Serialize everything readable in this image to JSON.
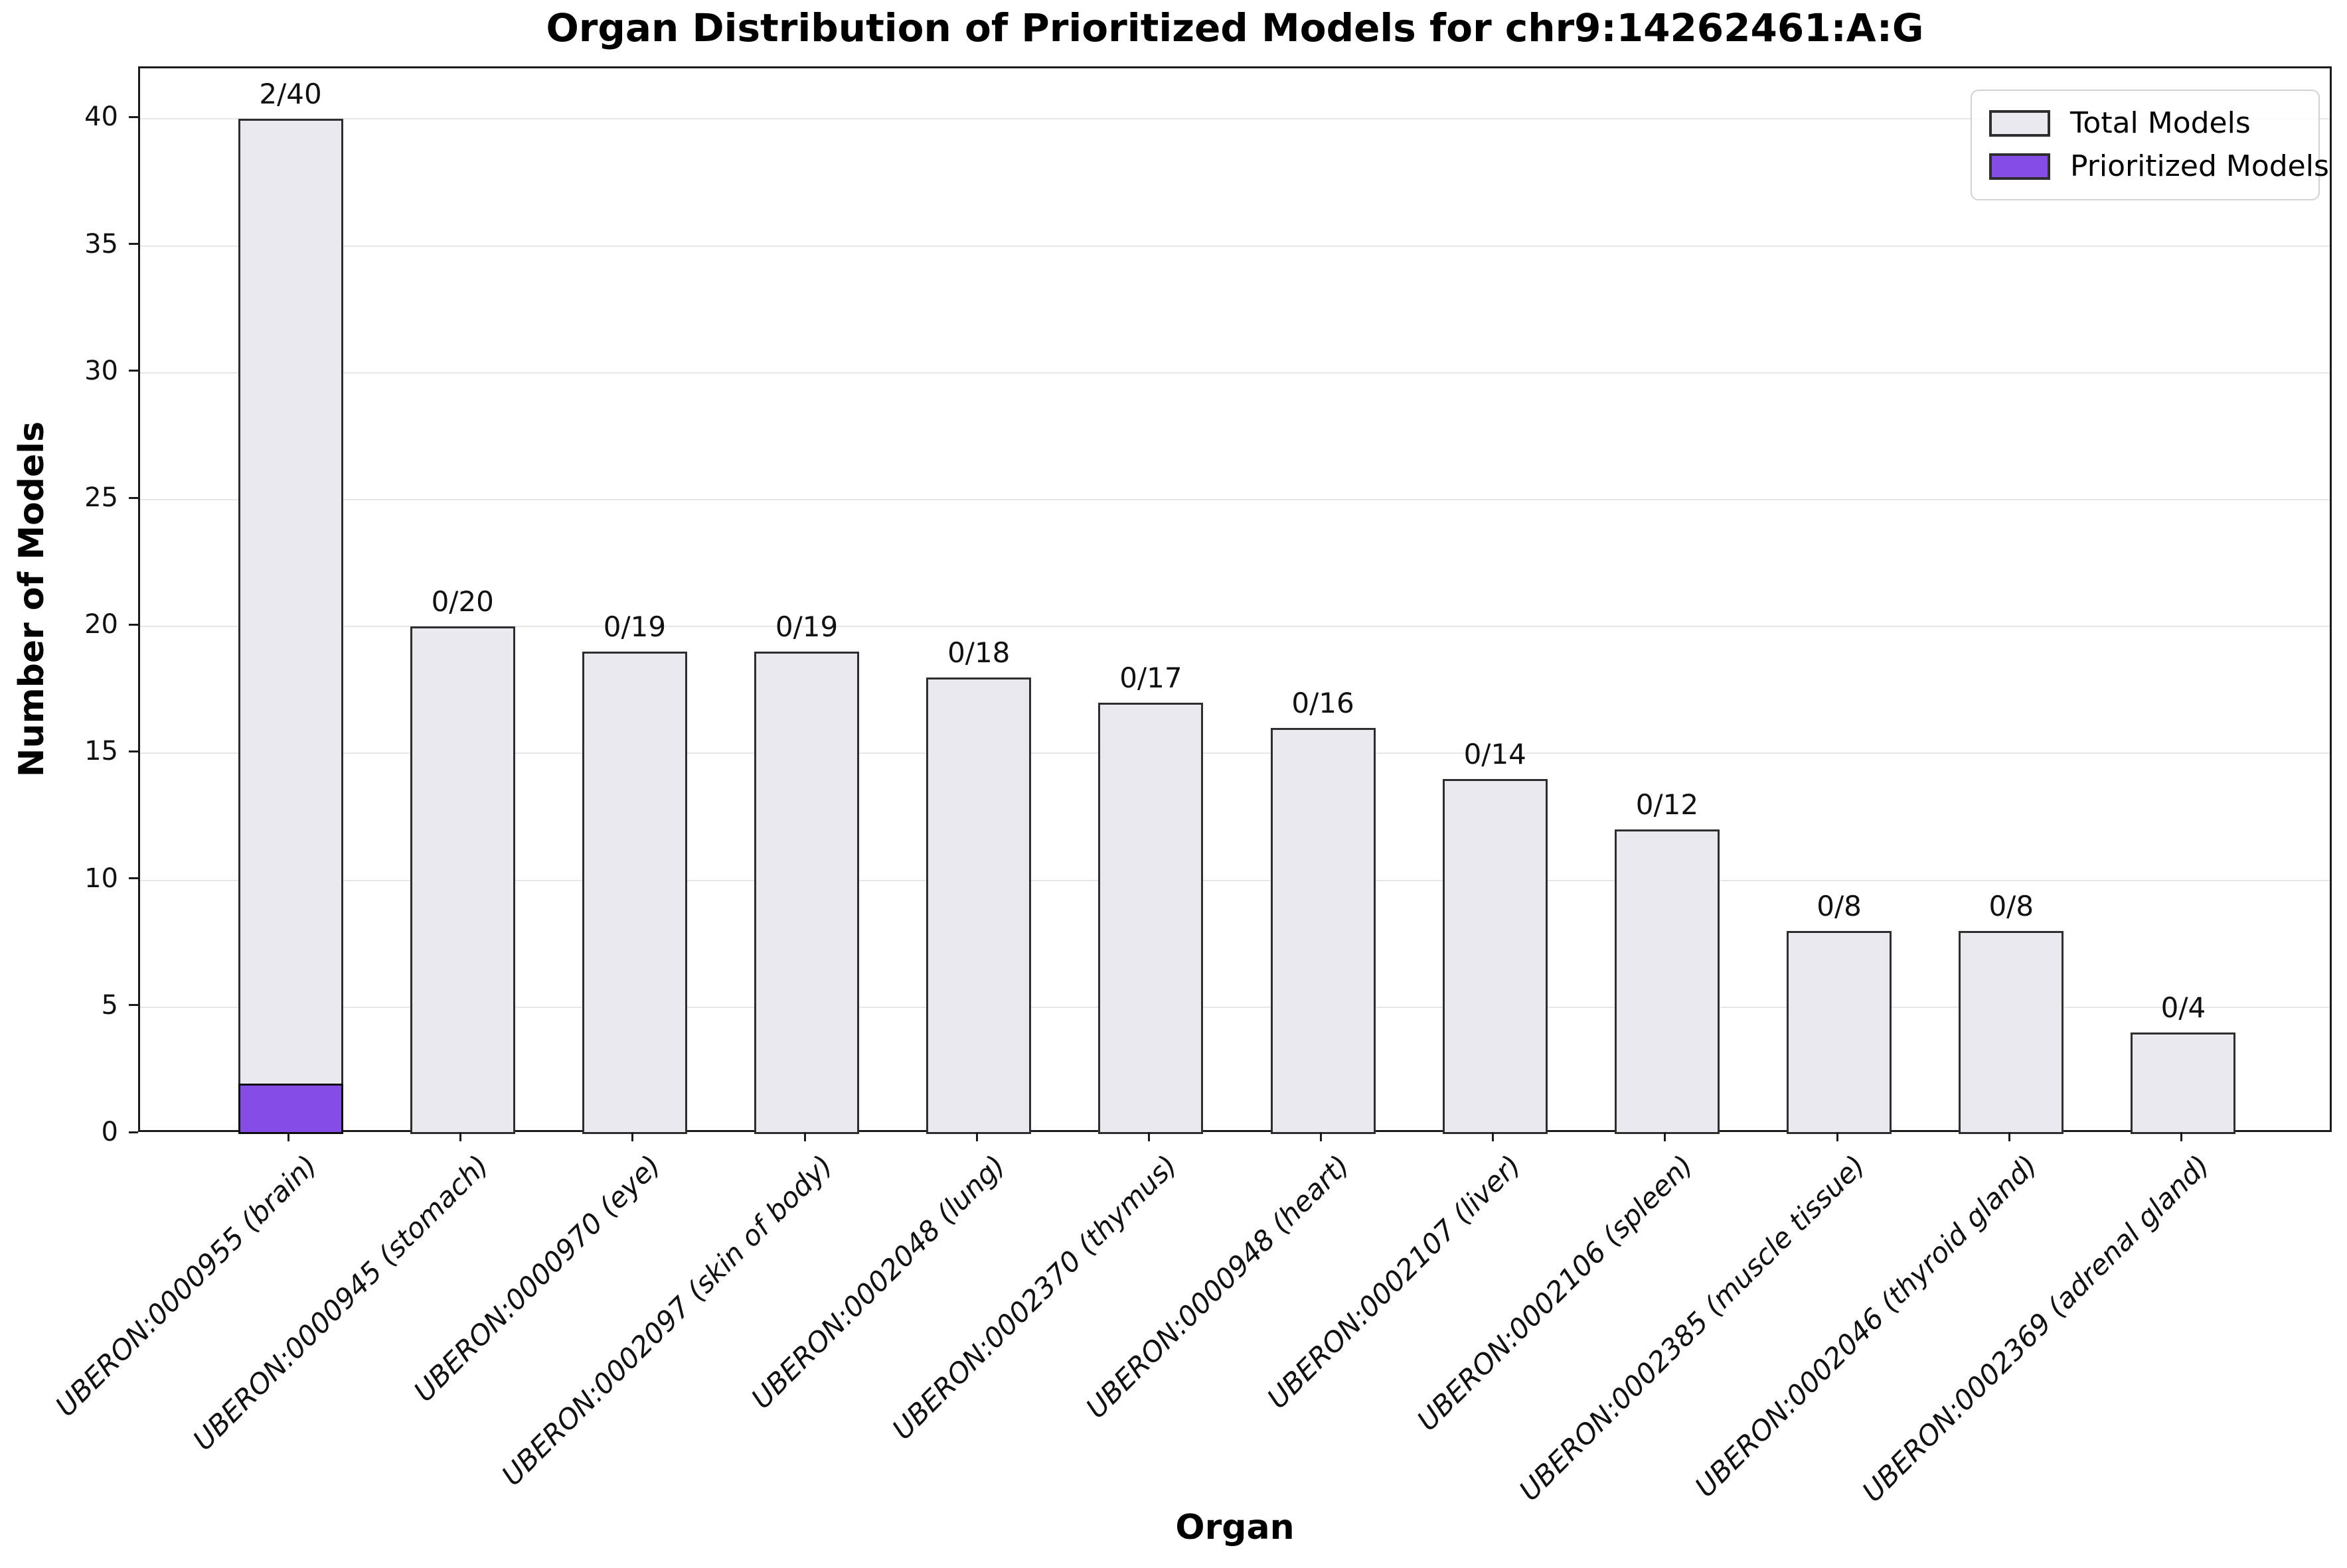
{
  "figure": {
    "background": "#ffffff"
  },
  "chart_data": {
    "type": "bar",
    "title": "Organ Distribution of Prioritized Models for chr9:14262461:A:G",
    "xlabel": "Organ",
    "ylabel": "Number of Models",
    "categories": [
      "UBERON:0000955 (brain)",
      "UBERON:0000945 (stomach)",
      "UBERON:0000970 (eye)",
      "UBERON:0002097 (skin of body)",
      "UBERON:0002048 (lung)",
      "UBERON:0002370 (thymus)",
      "UBERON:0000948 (heart)",
      "UBERON:0002107 (liver)",
      "UBERON:0002106 (spleen)",
      "UBERON:0002385 (muscle tissue)",
      "UBERON:0002046 (thyroid gland)",
      "UBERON:0002369 (adrenal gland)"
    ],
    "series": [
      {
        "name": "Total Models",
        "values": [
          40,
          20,
          19,
          19,
          18,
          17,
          16,
          14,
          12,
          8,
          8,
          4
        ],
        "fill": "#e9e9ef",
        "edge": "#2e2e2e"
      },
      {
        "name": "Prioritized Models",
        "values": [
          2,
          0,
          0,
          0,
          0,
          0,
          0,
          0,
          0,
          0,
          0,
          0
        ],
        "fill": "#864ce6",
        "edge": "#0d0d0d"
      }
    ],
    "bar_labels": [
      "2/40",
      "0/20",
      "0/19",
      "0/19",
      "0/18",
      "0/17",
      "0/16",
      "0/14",
      "0/12",
      "0/8",
      "0/8",
      "0/4"
    ],
    "yticks": [
      0,
      5,
      10,
      15,
      20,
      25,
      30,
      35,
      40
    ],
    "ylim": [
      0,
      42
    ],
    "grid": "horizontal",
    "gridline_color": "#e7e7e7",
    "legend_position": "upper right"
  },
  "legend": {
    "items": [
      {
        "label": "Total Models",
        "swatch": "#e9e9ef"
      },
      {
        "label": "Prioritized Models",
        "swatch": "#864ce6"
      }
    ]
  }
}
